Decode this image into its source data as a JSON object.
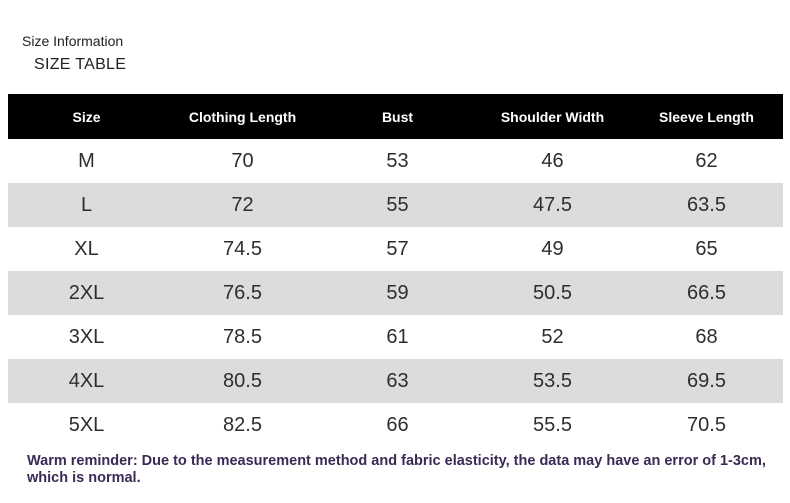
{
  "header": {
    "title": "Size Information",
    "subtitle": "SIZE TABLE"
  },
  "table": {
    "columns": [
      "Size",
      "Clothing Length",
      "Bust",
      "Shoulder Width",
      "Sleeve Length"
    ],
    "rows": [
      [
        "M",
        "70",
        "53",
        "46",
        "62"
      ],
      [
        "L",
        "72",
        "55",
        "47.5",
        "63.5"
      ],
      [
        "XL",
        "74.5",
        "57",
        "49",
        "65"
      ],
      [
        "2XL",
        "76.5",
        "59",
        "50.5",
        "66.5"
      ],
      [
        "3XL",
        "78.5",
        "61",
        "52",
        "68"
      ],
      [
        "4XL",
        "80.5",
        "63",
        "53.5",
        "69.5"
      ],
      [
        "5XL",
        "82.5",
        "66",
        "55.5",
        "70.5"
      ]
    ]
  },
  "footer": {
    "note": "Warm reminder: Due to the measurement method and fabric elasticity, the data may have an error of 1-3cm, which is normal."
  },
  "colors": {
    "header_bg": "#000000",
    "shaded_row": "#dcdcdc",
    "note_text": "#3a2a55"
  }
}
